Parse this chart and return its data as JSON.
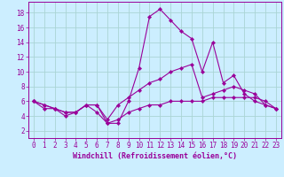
{
  "xlabel": "Windchill (Refroidissement éolien,°C)",
  "background_color": "#cceeff",
  "grid_color": "#aad4d4",
  "line_color": "#990099",
  "xlim": [
    -0.5,
    23.5
  ],
  "ylim": [
    1,
    19.5
  ],
  "xticks": [
    0,
    1,
    2,
    3,
    4,
    5,
    6,
    7,
    8,
    9,
    10,
    11,
    12,
    13,
    14,
    15,
    16,
    17,
    18,
    19,
    20,
    21,
    22,
    23
  ],
  "yticks": [
    2,
    4,
    6,
    8,
    10,
    12,
    14,
    16,
    18
  ],
  "series1_x": [
    0,
    1,
    2,
    3,
    4,
    5,
    6,
    7,
    8,
    9,
    10,
    11,
    12,
    13,
    14,
    15,
    16,
    17,
    18,
    19,
    20,
    21,
    22,
    23
  ],
  "series1_y": [
    6.0,
    5.0,
    5.0,
    4.5,
    4.5,
    5.5,
    5.5,
    3.0,
    3.5,
    4.5,
    5.0,
    5.5,
    5.5,
    6.0,
    6.0,
    6.0,
    6.0,
    6.5,
    6.5,
    6.5,
    6.5,
    6.5,
    6.0,
    5.0
  ],
  "series2_x": [
    0,
    1,
    2,
    3,
    4,
    5,
    6,
    7,
    8,
    9,
    10,
    11,
    12,
    13,
    14,
    15,
    16,
    17,
    18,
    19,
    20,
    21,
    22,
    23
  ],
  "series2_y": [
    6.0,
    5.5,
    5.0,
    4.0,
    4.5,
    5.5,
    4.5,
    3.0,
    3.0,
    6.0,
    10.5,
    17.5,
    18.5,
    17.0,
    15.5,
    14.5,
    10.0,
    14.0,
    8.5,
    9.5,
    7.0,
    6.0,
    5.5,
    5.0
  ],
  "series3_x": [
    0,
    1,
    2,
    3,
    4,
    5,
    6,
    7,
    8,
    9,
    10,
    11,
    12,
    13,
    14,
    15,
    16,
    17,
    18,
    19,
    20,
    21,
    22,
    23
  ],
  "series3_y": [
    6.0,
    5.5,
    5.0,
    4.5,
    4.5,
    5.5,
    5.5,
    3.5,
    5.5,
    6.5,
    7.5,
    8.5,
    9.0,
    10.0,
    10.5,
    11.0,
    6.5,
    7.0,
    7.5,
    8.0,
    7.5,
    7.0,
    5.5,
    5.0
  ],
  "font_size_ticks": 5.5,
  "font_size_xlabel": 6.0,
  "marker_size": 2.2,
  "line_width": 0.8
}
